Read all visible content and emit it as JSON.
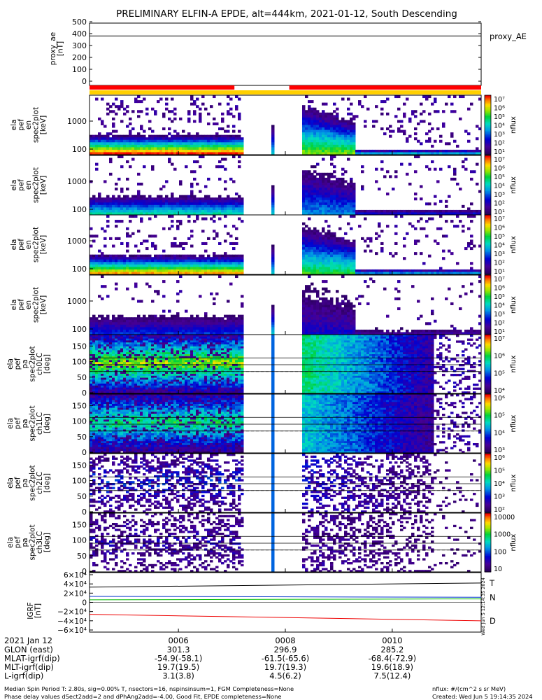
{
  "chart_data": {
    "type": "heatmap",
    "title": "PRELIMINARY ELFIN-A EPDE, alt=444km, 2021-01-12, South Descending",
    "colorbar_unit": "nflux",
    "time_axis": {
      "ticks": [
        "0006",
        "0008",
        "0010"
      ],
      "date_label": "2021 Jan 12",
      "rows": [
        {
          "label": "GLON (east)",
          "values": [
            "301.3",
            "296.9",
            "285.2"
          ]
        },
        {
          "label": "MLAT-igrf(dip)",
          "values": [
            "-54.9(-58.1)",
            "-61.5(-65.6)",
            "-68.4(-72.9)"
          ]
        },
        {
          "label": "MLT-igrf(dip)",
          "values": [
            "19.7(19.5)",
            "19.7(19.3)",
            "19.6(18.9)"
          ]
        },
        {
          "label": "L-igrf(dip)",
          "values": [
            "3.1(3.8)",
            "4.5(6.2)",
            "7.5(12.4)"
          ]
        }
      ]
    },
    "proxy_ae": {
      "ylabel": [
        "proxy_ae",
        "[nT]"
      ],
      "legend": "proxy_AE",
      "ylim": [
        0,
        500
      ],
      "yticks": [
        "500",
        "400",
        "300",
        "200",
        "100",
        "0"
      ],
      "value": 380,
      "status_bars": [
        {
          "color": "#ff0000",
          "segments": [
            [
              0,
              0.37
            ],
            [
              0.51,
              1.0
            ]
          ]
        },
        {
          "color": "#ffd000",
          "segments": [
            [
              0,
              1.0
            ]
          ]
        }
      ]
    },
    "energy_panels": [
      {
        "ylabel": [
          "ela",
          "pef",
          "en",
          "spec2plot",
          "[keV]"
        ],
        "yticks": [
          "1000",
          "100"
        ],
        "cbar_ticks": [
          "10⁷",
          "10⁶",
          "10⁵",
          "10⁴",
          "10³",
          "10²",
          "10¹"
        ],
        "intensity": 1.0
      },
      {
        "ylabel": [
          "ela",
          "pef",
          "en",
          "spec2plot",
          "[keV]"
        ],
        "yticks": [
          "1000",
          "100"
        ],
        "cbar_ticks": [
          "10⁷",
          "10⁶",
          "10⁵",
          "10⁴",
          "10³",
          "10²",
          "10¹"
        ],
        "intensity": 0.55
      },
      {
        "ylabel": [
          "ela",
          "pef",
          "en",
          "spec2plot",
          "[keV]"
        ],
        "yticks": [
          "1000",
          "100"
        ],
        "cbar_ticks": [
          "10⁷",
          "10⁶",
          "10⁵",
          "10⁴",
          "10³",
          "10²",
          "10¹"
        ],
        "intensity": 0.9
      },
      {
        "ylabel": [
          "ela",
          "pef",
          "en",
          "spec2plot",
          "[keV]"
        ],
        "yticks": [
          "1000",
          "100"
        ],
        "cbar_ticks": [
          "10⁷",
          "10⁶",
          "10⁵",
          "10⁴",
          "10³",
          "10²",
          "10¹"
        ],
        "intensity": 0.3
      }
    ],
    "pitch_panels": [
      {
        "ylabel": [
          "ela",
          "pef",
          "pa",
          "spec2plot",
          "ch0LC",
          "[deg]"
        ],
        "yticks": [
          "150",
          "100",
          "50",
          "0"
        ],
        "cbar_ticks": [
          "10⁷",
          "10⁶",
          "10⁵",
          "10⁴"
        ],
        "intensity": 1.0
      },
      {
        "ylabel": [
          "ela",
          "pef",
          "pa",
          "spec2plot",
          "ch1LC",
          "[deg]"
        ],
        "yticks": [
          "150",
          "100",
          "50",
          "0"
        ],
        "cbar_ticks": [
          "10⁶",
          "10⁵",
          "10⁴",
          "10³"
        ],
        "intensity": 0.8
      },
      {
        "ylabel": [
          "ela",
          "pef",
          "pa",
          "spec2plot",
          "ch2LC",
          "[deg]"
        ],
        "yticks": [
          "150",
          "100",
          "50",
          "0"
        ],
        "cbar_ticks": [
          "10⁶",
          "10⁵",
          "10⁴",
          "10³",
          "10²"
        ],
        "intensity": 0.35
      },
      {
        "ylabel": [
          "ela",
          "pef",
          "pa",
          "spec2plot",
          "ch3LC",
          "[deg]"
        ],
        "yticks": [
          "150",
          "100",
          "50",
          "0"
        ],
        "cbar_ticks": [
          "10000",
          "1000",
          "100",
          "10"
        ],
        "intensity": 0.2
      }
    ],
    "igrf": {
      "ylabel": [
        "IGRF",
        "[nT]"
      ],
      "ylim": [
        -60000,
        60000
      ],
      "yticks": [
        "6×10⁴",
        "4×10⁴",
        "2×10⁴",
        "0",
        "−2×10⁴",
        "−4×10⁴",
        "−6×10⁴"
      ],
      "series": [
        {
          "name": "T",
          "color": "#000000",
          "values": [
            33000,
            42000
          ]
        },
        {
          "name": "N",
          "color": "#0033cc",
          "values": [
            13000,
            11000
          ]
        },
        {
          "name": "",
          "color": "#00bb00",
          "values": [
            5500,
            7500
          ]
        },
        {
          "name": "D",
          "color": "#ee0000",
          "values": [
            -26000,
            -40000
          ]
        }
      ]
    },
    "side_stamp": "Wed Jun  5 12:14:35 2024"
  },
  "footer": {
    "left": [
      "Median Spin Period T: 2.80s, sig=0.00% T, nsectors=16, nspinsinsum=1, FGM Completeness=None",
      "Phase delay values dSect2add=2 and dPhAng2add=-4.00, Good Fit, EPDE completeness=None"
    ],
    "right": [
      "nflux: #/(cm^2 s sr MeV)",
      "Created: Wed Jun  5 19:14:35 2024"
    ]
  }
}
